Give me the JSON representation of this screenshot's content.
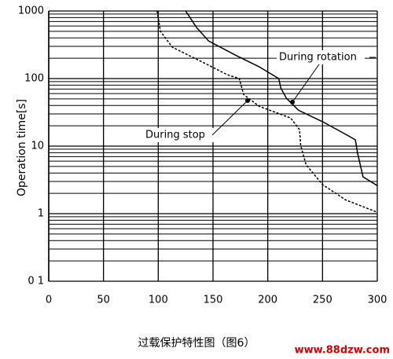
{
  "chart_data": {
    "type": "line",
    "y_label": "Operation time[s]",
    "caption": "过载保护特性图（图6）",
    "watermark": "www.88dzw.com",
    "log_y": true,
    "grid": true,
    "minor_grid": true,
    "xlim": [
      0,
      300
    ],
    "xticks": [
      0,
      50,
      100,
      150,
      200,
      250,
      300
    ],
    "ylim": [
      0.1,
      1000
    ],
    "yticks": [
      1000,
      100,
      10,
      1,
      {
        "value": 0.1,
        "label": "0 1"
      }
    ],
    "series": [
      {
        "name": "During rotation",
        "color": "#000000",
        "dash": false,
        "x": [
          125,
          135,
          146,
          171,
          192,
          210,
          212,
          217,
          228,
          250,
          271,
          280,
          282,
          287,
          300
        ],
        "values": [
          1000,
          570,
          360,
          220,
          150,
          100,
          72,
          51,
          34,
          23,
          15,
          12.4,
          7.9,
          3.5,
          2.6
        ]
      },
      {
        "name": "During stop",
        "color": "#000000",
        "dash": true,
        "x": [
          99,
          102,
          113,
          142,
          163,
          174,
          178,
          192,
          221,
          229,
          230,
          235,
          250,
          271,
          300
        ],
        "values": [
          1000,
          500,
          290,
          170,
          114,
          100,
          58,
          39,
          26,
          17.5,
          10.3,
          5.3,
          2.7,
          1.6,
          1.05
        ]
      }
    ]
  }
}
